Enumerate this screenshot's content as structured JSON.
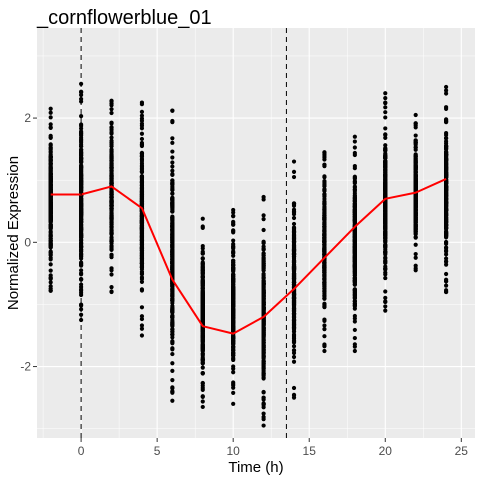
{
  "chart_data": {
    "type": "scatter",
    "title": "_cornflowerblue_01",
    "xlabel": "Time (h)",
    "ylabel": "Normalized Expression",
    "xlim": [
      -2.9,
      25.9
    ],
    "ylim": [
      -3.15,
      3.45
    ],
    "x_ticks": [
      0,
      5,
      10,
      15,
      20,
      25
    ],
    "x_tick_labels": [
      "0",
      "5",
      "10",
      "15",
      "20",
      "25"
    ],
    "y_ticks": [
      -2,
      0,
      2
    ],
    "y_tick_labels": [
      "-2",
      "0",
      "2"
    ],
    "grid": true,
    "legend": "none",
    "vlines_dashed": [
      0,
      13.5
    ],
    "point_columns": [
      {
        "x": -2,
        "min": -0.78,
        "max": 2.15
      },
      {
        "x": 0,
        "min": -1.25,
        "max": 2.55
      },
      {
        "x": 2,
        "min": -0.8,
        "max": 2.28
      },
      {
        "x": 4,
        "min": -1.5,
        "max": 2.25
      },
      {
        "x": 6,
        "min": -2.55,
        "max": 2.12
      },
      {
        "x": 8,
        "min": -2.65,
        "max": 0.38
      },
      {
        "x": 10,
        "min": -2.6,
        "max": 0.52
      },
      {
        "x": 12,
        "min": -2.95,
        "max": 0.73
      },
      {
        "x": 14,
        "min": -2.5,
        "max": 1.3
      },
      {
        "x": 16,
        "min": -1.75,
        "max": 1.45
      },
      {
        "x": 18,
        "min": -1.75,
        "max": 1.7
      },
      {
        "x": 20,
        "min": -1.1,
        "max": 2.4
      },
      {
        "x": 22,
        "min": -0.45,
        "max": 2.05
      },
      {
        "x": 24,
        "min": -0.8,
        "max": 2.5
      }
    ],
    "series": [
      {
        "x": [
          -2,
          0,
          2,
          4,
          6,
          8,
          10,
          12,
          14,
          16,
          18,
          20,
          22,
          24
        ],
        "y": [
          0.77,
          0.77,
          0.9,
          0.55,
          -0.6,
          -1.35,
          -1.47,
          -1.2,
          -0.75,
          -0.25,
          0.25,
          0.7,
          0.8,
          1.02
        ],
        "color": "#ff0000"
      }
    ],
    "colors": {
      "panel_background": "#ebebeb",
      "grid_major": "#ffffff",
      "points": "#000000",
      "line": "#ff0000"
    }
  }
}
